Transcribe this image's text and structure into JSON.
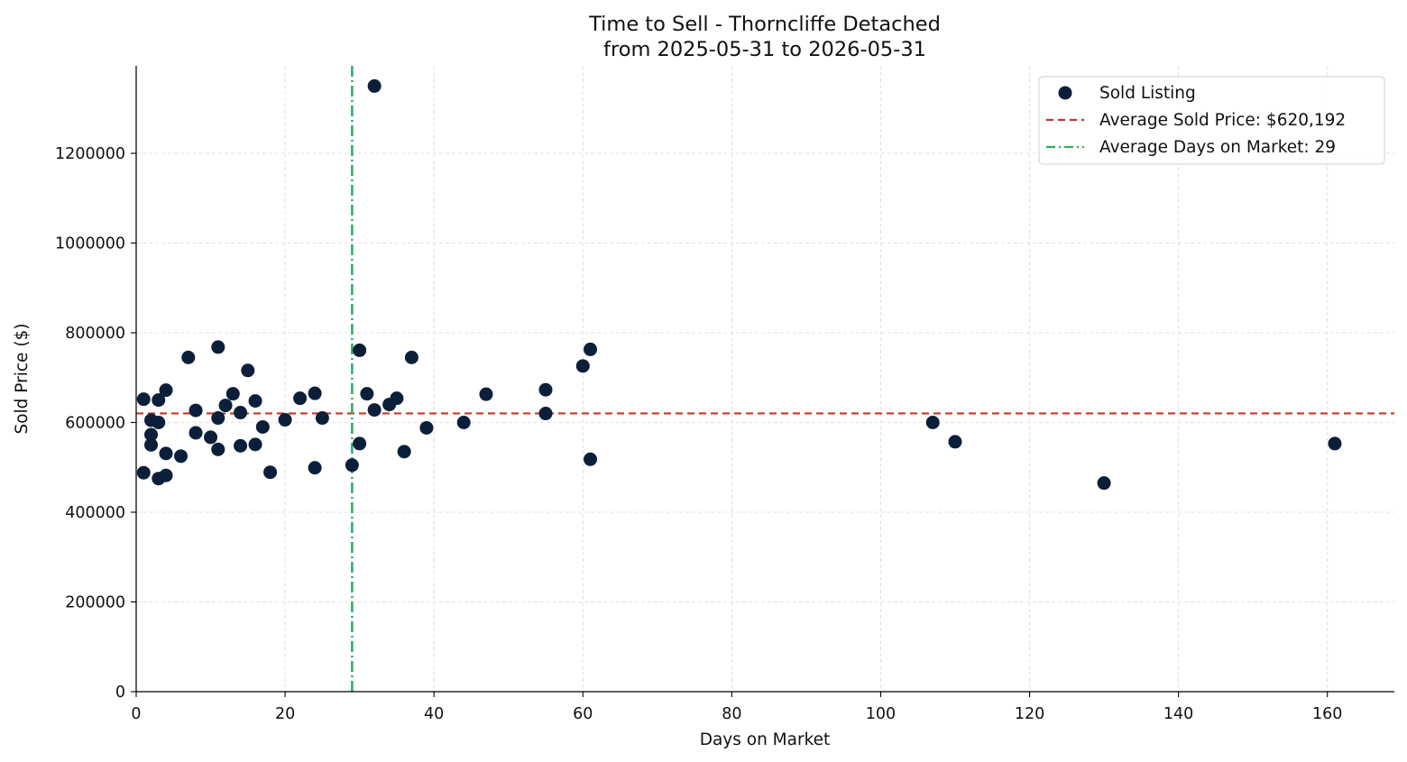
{
  "chart_data": {
    "type": "scatter",
    "title": "Time to Sell - Thorncliffe Detached",
    "subtitle": "from 2025-05-31 to 2026-05-31",
    "xlabel": "Days on Market",
    "ylabel": "Sold Price ($)",
    "xlim": [
      0,
      169
    ],
    "ylim": [
      0,
      1395000
    ],
    "xticks": [
      0,
      20,
      40,
      60,
      80,
      100,
      120,
      140,
      160
    ],
    "yticks": [
      0,
      200000,
      400000,
      600000,
      800000,
      1000000,
      1200000
    ],
    "grid": true,
    "legend_position": "top-right",
    "colors": {
      "points": "#0b1f3a",
      "avg_price_line": "#c0392b",
      "avg_days_line": "#27ae60"
    },
    "series": [
      {
        "name": "Sold Listing",
        "points": [
          {
            "x": 1,
            "y": 652000
          },
          {
            "x": 1,
            "y": 488000
          },
          {
            "x": 2,
            "y": 605000
          },
          {
            "x": 2,
            "y": 573000
          },
          {
            "x": 2,
            "y": 550000
          },
          {
            "x": 3,
            "y": 650000
          },
          {
            "x": 3,
            "y": 600000
          },
          {
            "x": 3,
            "y": 475000
          },
          {
            "x": 4,
            "y": 672000
          },
          {
            "x": 4,
            "y": 531000
          },
          {
            "x": 4,
            "y": 482000
          },
          {
            "x": 6,
            "y": 525000
          },
          {
            "x": 7,
            "y": 745000
          },
          {
            "x": 8,
            "y": 627000
          },
          {
            "x": 8,
            "y": 577000
          },
          {
            "x": 10,
            "y": 567000
          },
          {
            "x": 11,
            "y": 768000
          },
          {
            "x": 11,
            "y": 610000
          },
          {
            "x": 11,
            "y": 540000
          },
          {
            "x": 12,
            "y": 638000
          },
          {
            "x": 13,
            "y": 664000
          },
          {
            "x": 14,
            "y": 622000
          },
          {
            "x": 14,
            "y": 548000
          },
          {
            "x": 15,
            "y": 716000
          },
          {
            "x": 16,
            "y": 648000
          },
          {
            "x": 16,
            "y": 551000
          },
          {
            "x": 17,
            "y": 590000
          },
          {
            "x": 18,
            "y": 489000
          },
          {
            "x": 20,
            "y": 606000
          },
          {
            "x": 22,
            "y": 654000
          },
          {
            "x": 24,
            "y": 665000
          },
          {
            "x": 24,
            "y": 499000
          },
          {
            "x": 25,
            "y": 610000
          },
          {
            "x": 29,
            "y": 505000
          },
          {
            "x": 30,
            "y": 761000
          },
          {
            "x": 30,
            "y": 553000
          },
          {
            "x": 31,
            "y": 664000
          },
          {
            "x": 32,
            "y": 1350000
          },
          {
            "x": 32,
            "y": 628000
          },
          {
            "x": 34,
            "y": 640000
          },
          {
            "x": 35,
            "y": 654000
          },
          {
            "x": 36,
            "y": 535000
          },
          {
            "x": 37,
            "y": 745000
          },
          {
            "x": 39,
            "y": 588000
          },
          {
            "x": 44,
            "y": 600000
          },
          {
            "x": 47,
            "y": 663000
          },
          {
            "x": 55,
            "y": 673000
          },
          {
            "x": 55,
            "y": 620000
          },
          {
            "x": 60,
            "y": 726000
          },
          {
            "x": 61,
            "y": 763000
          },
          {
            "x": 61,
            "y": 518000
          },
          {
            "x": 107,
            "y": 600000
          },
          {
            "x": 110,
            "y": 557000
          },
          {
            "x": 130,
            "y": 465000
          },
          {
            "x": 161,
            "y": 553000
          }
        ]
      }
    ],
    "reference_lines": [
      {
        "orientation": "horizontal",
        "value": 620192,
        "style": "dashed",
        "label": "Average Sold Price: $620,192"
      },
      {
        "orientation": "vertical",
        "value": 29,
        "style": "dashdot",
        "label": "Average Days on Market: 29"
      }
    ]
  }
}
